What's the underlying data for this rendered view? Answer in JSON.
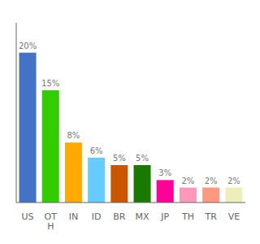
{
  "chart_data": {
    "type": "bar",
    "categories": [
      "US",
      "OT\nH",
      "IN",
      "ID",
      "BR",
      "MX",
      "JP",
      "TH",
      "TR",
      "VE"
    ],
    "values": [
      20,
      15,
      8,
      6,
      5,
      5,
      3,
      2,
      2,
      2
    ],
    "value_labels": [
      "20%",
      "15%",
      "8%",
      "6%",
      "5%",
      "5%",
      "3%",
      "2%",
      "2%",
      "2%"
    ],
    "colors": [
      "#4472c4",
      "#33cc00",
      "#ffaa00",
      "#66ccff",
      "#cc5500",
      "#1a7a00",
      "#ff0099",
      "#ff99bb",
      "#ff9980",
      "#eeeebb"
    ],
    "ylim": [
      0,
      24
    ],
    "grid": false,
    "data_labels": true,
    "tick_labels": "x"
  }
}
